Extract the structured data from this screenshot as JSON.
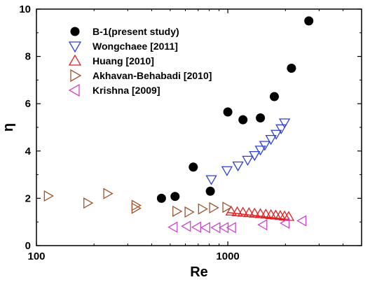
{
  "chart_data": {
    "type": "scatter",
    "title": "",
    "xlabel": "Re",
    "ylabel": "η",
    "x_scale": "log",
    "xlim": [
      100,
      5000
    ],
    "ylim": [
      0,
      10
    ],
    "x_ticks": [
      100,
      1000
    ],
    "x_tick_labels": [
      "100",
      "1000"
    ],
    "y_ticks": [
      0,
      2,
      4,
      6,
      8,
      10
    ],
    "y_tick_labels": [
      "0",
      "2",
      "4",
      "6",
      "8",
      "10"
    ],
    "legend_position": "top-left",
    "series": [
      {
        "name": "B-1(present study)",
        "marker": "circle-filled",
        "color": "#000000",
        "points": [
          [
            450,
            2.0
          ],
          [
            530,
            2.08
          ],
          [
            660,
            3.32
          ],
          [
            810,
            2.3
          ],
          [
            1000,
            5.65
          ],
          [
            1200,
            5.32
          ],
          [
            1480,
            5.4
          ],
          [
            1750,
            6.3
          ],
          [
            2150,
            7.5
          ],
          [
            2650,
            9.5
          ]
        ]
      },
      {
        "name": "Wongchaee [2011]",
        "marker": "triangle-down",
        "color": "#2f3fd8",
        "points": [
          [
            820,
            2.8
          ],
          [
            990,
            3.18
          ],
          [
            1130,
            3.38
          ],
          [
            1270,
            3.62
          ],
          [
            1380,
            3.82
          ],
          [
            1480,
            4.05
          ],
          [
            1560,
            4.25
          ],
          [
            1680,
            4.5
          ],
          [
            1790,
            4.72
          ],
          [
            1900,
            4.95
          ],
          [
            1980,
            5.2
          ]
        ]
      },
      {
        "name": "Huang  [2010]",
        "marker": "triangle-up",
        "color": "#e02020",
        "points": [
          [
            1040,
            1.45
          ],
          [
            1120,
            1.42
          ],
          [
            1200,
            1.4
          ],
          [
            1290,
            1.38
          ],
          [
            1380,
            1.36
          ],
          [
            1480,
            1.34
          ],
          [
            1580,
            1.32
          ],
          [
            1680,
            1.3
          ],
          [
            1780,
            1.28
          ],
          [
            1880,
            1.26
          ],
          [
            1980,
            1.24
          ],
          [
            2080,
            1.22
          ]
        ],
        "fit_line": [
          [
            1000,
            1.4
          ],
          [
            2100,
            1.1
          ]
        ]
      },
      {
        "name": "Akhavan-Behabadi [2010]",
        "marker": "triangle-right",
        "color": "#a0522d",
        "points": [
          [
            115,
            2.1
          ],
          [
            185,
            1.8
          ],
          [
            235,
            2.2
          ],
          [
            330,
            1.7
          ],
          [
            330,
            1.58
          ],
          [
            540,
            1.45
          ],
          [
            625,
            1.42
          ],
          [
            735,
            1.55
          ],
          [
            840,
            1.6
          ],
          [
            985,
            1.62
          ]
        ]
      },
      {
        "name": "Krishna [2009]",
        "marker": "triangle-left",
        "color": "#cc44cc",
        "points": [
          [
            520,
            0.78
          ],
          [
            610,
            0.82
          ],
          [
            690,
            0.78
          ],
          [
            770,
            0.76
          ],
          [
            870,
            0.76
          ],
          [
            960,
            0.76
          ],
          [
            1050,
            0.76
          ],
          [
            1530,
            0.88
          ],
          [
            2000,
            0.95
          ],
          [
            2450,
            1.05
          ]
        ]
      }
    ]
  },
  "colors": {
    "axis": "#000000",
    "background": "#ffffff"
  }
}
